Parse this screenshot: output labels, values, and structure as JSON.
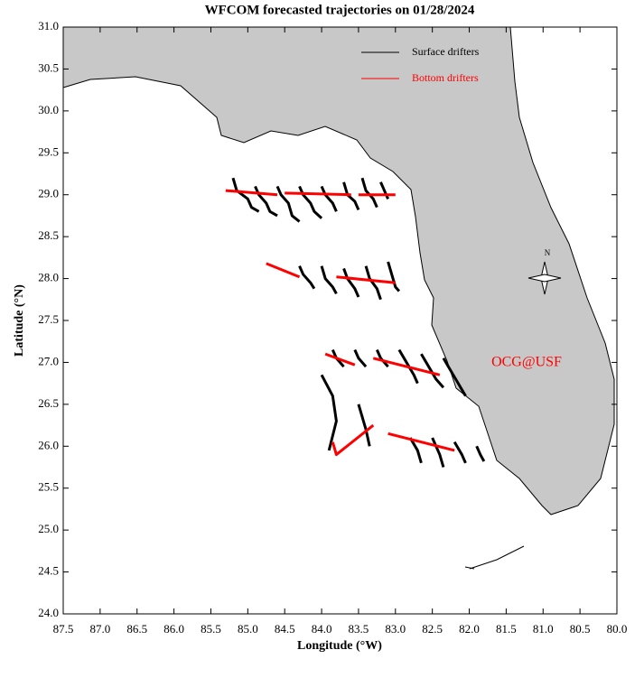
{
  "chart_data": {
    "type": "trajectory",
    "title": "WFCOM forecasted trajectories on 01/28/2024",
    "x_label": "Longitude (°W)",
    "y_label": "Latitude (°N)",
    "annotation": "OCG@USF",
    "compass": "N",
    "xlim": [
      87.5,
      80.0
    ],
    "ylim": [
      24.0,
      31.0
    ],
    "xticks": [
      87.5,
      {
        "value": 87,
        "label": "87.0"
      },
      86.5,
      {
        "value": 86,
        "label": "86.0"
      },
      85.5,
      {
        "value": 85,
        "label": "85.0"
      },
      84.5,
      {
        "value": 84,
        "label": "84.0"
      },
      83.5,
      {
        "value": 83,
        "label": "83.0"
      },
      82.5,
      {
        "value": 82,
        "label": "82.0"
      },
      81.5,
      {
        "value": 81,
        "label": "81.0"
      },
      80.5,
      {
        "value": 80,
        "label": "80.0"
      }
    ],
    "yticks": [
      {
        "value": 24,
        "label": "24.0"
      },
      24.5,
      {
        "value": 25,
        "label": "25.0"
      },
      25.5,
      {
        "value": 26,
        "label": "26.0"
      },
      26.5,
      {
        "value": 27,
        "label": "27.0"
      },
      27.5,
      {
        "value": 28,
        "label": "28.0"
      },
      28.5,
      {
        "value": 29,
        "label": "29.0"
      },
      29.5,
      {
        "value": 30,
        "label": "30.0"
      },
      30.5,
      {
        "value": 31,
        "label": "31.0"
      }
    ],
    "series": [
      {
        "name": "Surface drifters",
        "color": "#000000",
        "tracks": [
          {
            "x": [
              85.2,
              85.15,
              85.0,
              84.95,
              84.85
            ],
            "y": [
              29.2,
              29.05,
              28.95,
              28.85,
              28.8
            ]
          },
          {
            "x": [
              84.9,
              84.85,
              84.75,
              84.7,
              84.6
            ],
            "y": [
              29.1,
              29.0,
              28.9,
              28.8,
              28.75
            ]
          },
          {
            "x": [
              84.6,
              84.55,
              84.45,
              84.4,
              84.3
            ],
            "y": [
              29.1,
              29.0,
              28.9,
              28.75,
              28.68
            ]
          },
          {
            "x": [
              84.3,
              84.25,
              84.15,
              84.1,
              84.0
            ],
            "y": [
              29.1,
              29.0,
              28.9,
              28.8,
              28.72
            ]
          },
          {
            "x": [
              84.0,
              83.95,
              83.85,
              83.8
            ],
            "y": [
              29.1,
              29.0,
              28.9,
              28.8
            ]
          },
          {
            "x": [
              83.7,
              83.65,
              83.55,
              83.5
            ],
            "y": [
              29.15,
              29.0,
              28.92,
              28.82
            ]
          },
          {
            "x": [
              83.45,
              83.4,
              83.3,
              83.25
            ],
            "y": [
              29.2,
              29.05,
              28.95,
              28.85
            ]
          },
          {
            "x": [
              83.2,
              83.15,
              83.1
            ],
            "y": [
              29.15,
              29.05,
              28.95
            ]
          },
          {
            "x": [
              84.3,
              84.25,
              84.15,
              84.1
            ],
            "y": [
              28.15,
              28.05,
              27.95,
              27.88
            ]
          },
          {
            "x": [
              84.0,
              83.95,
              83.85,
              83.8
            ],
            "y": [
              28.15,
              28.0,
              27.9,
              27.82
            ]
          },
          {
            "x": [
              83.7,
              83.65,
              83.55,
              83.5
            ],
            "y": [
              28.12,
              28.0,
              27.88,
              27.78
            ]
          },
          {
            "x": [
              83.4,
              83.35,
              83.25,
              83.2
            ],
            "y": [
              28.15,
              28.0,
              27.88,
              27.75
            ]
          },
          {
            "x": [
              83.1,
              83.05,
              83.0,
              82.95
            ],
            "y": [
              28.2,
              28.05,
              27.9,
              27.85
            ]
          },
          {
            "x": [
              83.85,
              83.8,
              83.7
            ],
            "y": [
              27.15,
              27.05,
              26.95
            ]
          },
          {
            "x": [
              83.55,
              83.5,
              83.4
            ],
            "y": [
              27.15,
              27.05,
              26.95
            ]
          },
          {
            "x": [
              83.25,
              83.2,
              83.1
            ],
            "y": [
              27.15,
              27.05,
              26.95
            ]
          },
          {
            "x": [
              82.95,
              82.85,
              82.75,
              82.7
            ],
            "y": [
              27.15,
              27.0,
              26.85,
              26.75
            ]
          },
          {
            "x": [
              82.65,
              82.55,
              82.45,
              82.35
            ],
            "y": [
              27.1,
              26.95,
              26.8,
              26.7
            ]
          },
          {
            "x": [
              82.35,
              82.25,
              82.15,
              82.05
            ],
            "y": [
              27.05,
              26.9,
              26.75,
              26.6
            ]
          },
          {
            "x": [
              84.0,
              83.85,
              83.8,
              83.9
            ],
            "y": [
              26.85,
              26.6,
              26.3,
              25.95
            ]
          },
          {
            "x": [
              83.5,
              83.4,
              83.35
            ],
            "y": [
              26.5,
              26.2,
              26.0
            ]
          },
          {
            "x": [
              82.8,
              82.7,
              82.65
            ],
            "y": [
              26.1,
              25.95,
              25.8
            ]
          },
          {
            "x": [
              82.5,
              82.4,
              82.35
            ],
            "y": [
              26.1,
              25.9,
              25.75
            ]
          },
          {
            "x": [
              82.2,
              82.1,
              82.05
            ],
            "y": [
              26.05,
              25.9,
              25.8
            ]
          },
          {
            "x": [
              81.9,
              81.85,
              81.8
            ],
            "y": [
              26.0,
              25.9,
              25.82
            ]
          }
        ]
      },
      {
        "name": "Bottom drifters",
        "color": "#ff0000",
        "tracks": [
          {
            "x": [
              85.3,
              84.6
            ],
            "y": [
              29.05,
              29.0
            ]
          },
          {
            "x": [
              84.5,
              83.6
            ],
            "y": [
              29.02,
              29.0
            ]
          },
          {
            "x": [
              83.5,
              83.0
            ],
            "y": [
              29.0,
              29.0
            ]
          },
          {
            "x": [
              84.75,
              84.3
            ],
            "y": [
              28.18,
              28.02
            ]
          },
          {
            "x": [
              83.8,
              83.0
            ],
            "y": [
              28.02,
              27.95
            ]
          },
          {
            "x": [
              83.95,
              83.55
            ],
            "y": [
              27.1,
              26.97
            ]
          },
          {
            "x": [
              83.3,
              82.4
            ],
            "y": [
              27.05,
              26.85
            ]
          },
          {
            "x": [
              83.85,
              83.8,
              83.3
            ],
            "y": [
              26.05,
              25.9,
              26.25
            ]
          },
          {
            "x": [
              83.1,
              82.2
            ],
            "y": [
              26.15,
              25.95
            ]
          }
        ]
      }
    ]
  }
}
